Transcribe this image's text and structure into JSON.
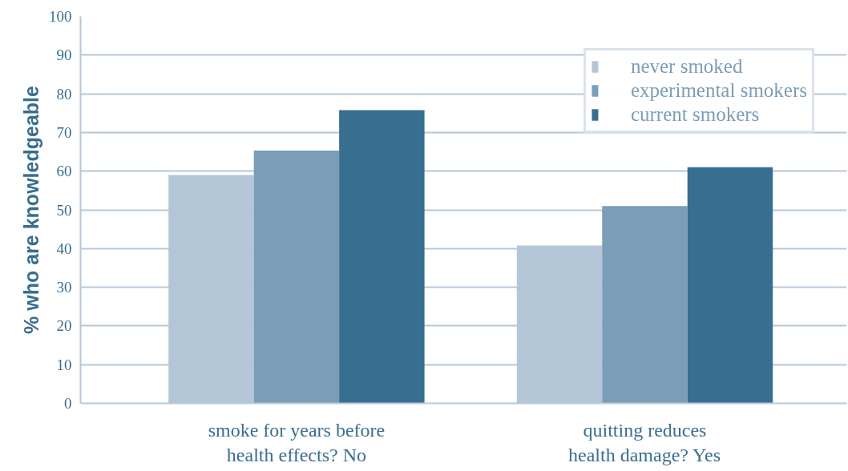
{
  "chart_data": {
    "type": "bar",
    "ylabel": "% who are knowledgeable",
    "categories": [
      "smoke for years before health effects? No",
      "quitting reduces health damage? Yes"
    ],
    "series": [
      {
        "name": "never smoked",
        "color": "#b3c6d7",
        "values": [
          59,
          40.8
        ]
      },
      {
        "name": "experimental smokers",
        "color": "#7b9db7",
        "values": [
          65.3,
          51
        ]
      },
      {
        "name": "current smokers",
        "color": "#386e8f",
        "values": [
          75.8,
          61
        ]
      }
    ],
    "ylim": [
      0,
      100
    ],
    "yticks": [
      0,
      10,
      20,
      30,
      40,
      50,
      60,
      70,
      80,
      90,
      100
    ],
    "grid": "y",
    "legend": "top right"
  }
}
